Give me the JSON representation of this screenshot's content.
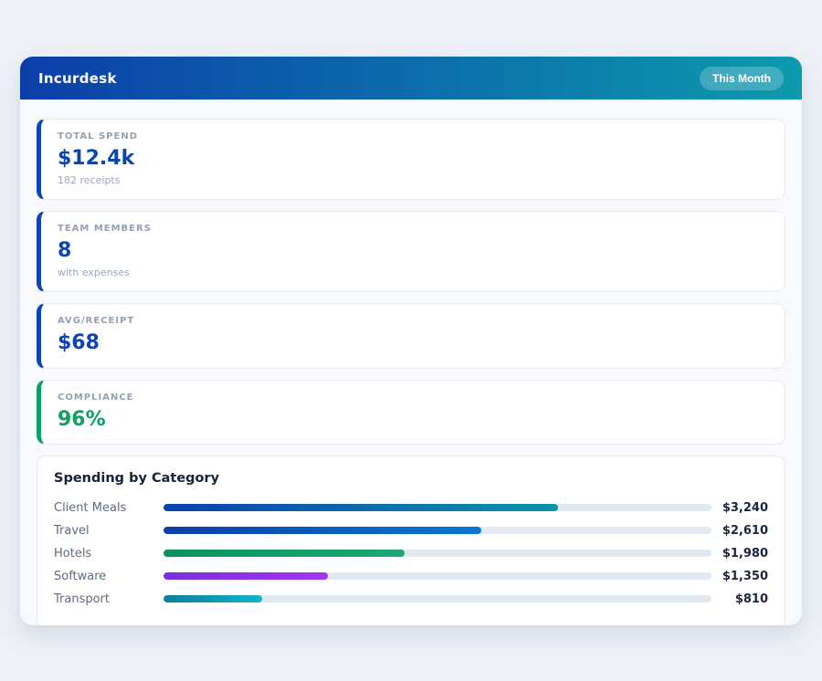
{
  "header": {
    "title": "Incurdesk",
    "badge": "This Month",
    "gradient_from": "#0c3ea9",
    "gradient_to": "#0c9aad"
  },
  "stats": [
    {
      "label": "TOTAL SPEND",
      "value": "$12.4k",
      "sub": "182 receipts",
      "accent": "#0b45b3",
      "value_color": "#0b45b3"
    },
    {
      "label": "TEAM MEMBERS",
      "value": "8",
      "sub": "with expenses",
      "accent": "#0b45b3",
      "value_color": "#0b45b3"
    },
    {
      "label": "AVG/RECEIPT",
      "value": "$68",
      "sub": "",
      "accent": "#0b45b3",
      "value_color": "#0b45b3"
    },
    {
      "label": "COMPLIANCE",
      "value": "96%",
      "sub": "",
      "accent": "#10a061",
      "value_color": "#10a061"
    }
  ],
  "chart": {
    "title": "Spending by Category",
    "max": 4500,
    "track_color": "#e2e8f0",
    "rows": [
      {
        "label": "Client Meals",
        "value": 3240,
        "display": "$3,240",
        "color_from": "#0a41ad",
        "color_to": "#0d94ab"
      },
      {
        "label": "Travel",
        "value": 2610,
        "display": "$2,610",
        "color_from": "#0a3fa8",
        "color_to": "#0b76d4"
      },
      {
        "label": "Hotels",
        "value": 1980,
        "display": "$1,980",
        "color_from": "#0c925a",
        "color_to": "#1ba874"
      },
      {
        "label": "Software",
        "value": 1350,
        "display": "$1,350",
        "color_from": "#7b2ee0",
        "color_to": "#a435ef"
      },
      {
        "label": "Transport",
        "value": 810,
        "display": "$810",
        "color_from": "#0e7f99",
        "color_to": "#10b5cb"
      }
    ]
  },
  "chart_data": {
    "type": "bar",
    "title": "Spending by Category",
    "orientation": "horizontal",
    "categories": [
      "Client Meals",
      "Travel",
      "Hotels",
      "Software",
      "Transport"
    ],
    "values": [
      3240,
      2610,
      1980,
      1350,
      810
    ],
    "value_labels": [
      "$3,240",
      "$2,610",
      "$1,980",
      "$1,350",
      "$810"
    ],
    "xlim": [
      0,
      4500
    ],
    "grid": false,
    "legend": false
  }
}
